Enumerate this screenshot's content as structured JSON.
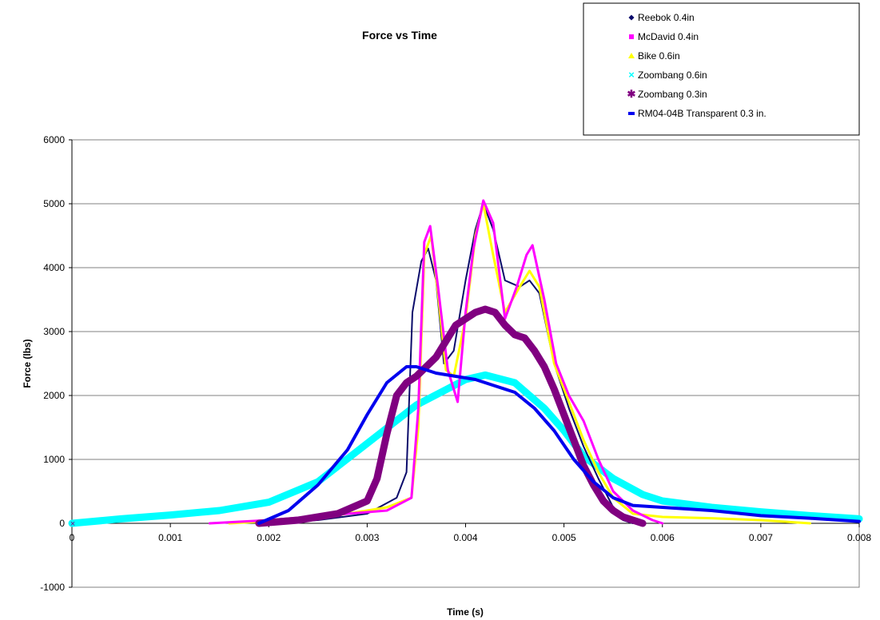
{
  "chart_data": {
    "type": "line",
    "title": "Force vs Time",
    "xlabel": "Time (s)",
    "ylabel": "Force (lbs)",
    "xlim": [
      0,
      0.008
    ],
    "ylim": [
      -1000,
      6000
    ],
    "x_ticks": [
      "0",
      "0.001",
      "0.002",
      "0.003",
      "0.004",
      "0.005",
      "0.006",
      "0.007",
      "0.008"
    ],
    "y_ticks": [
      "-1000",
      "0",
      "1000",
      "2000",
      "3000",
      "4000",
      "5000",
      "6000"
    ],
    "grid": "horizontal",
    "legend_position": "top-right",
    "series": [
      {
        "name": "Reebok 0.4in",
        "color": "#0b0b6b",
        "marker": "diamond",
        "x": [
          0.002,
          0.0025,
          0.003,
          0.0033,
          0.0034,
          0.00346,
          0.00355,
          0.00362,
          0.0037,
          0.00378,
          0.00388,
          0.004,
          0.0041,
          0.00418,
          0.00428,
          0.0044,
          0.00455,
          0.00465,
          0.00475,
          0.0049,
          0.00505,
          0.0052,
          0.00535,
          0.0055,
          0.0056,
          0.0057
        ],
        "y": [
          0,
          50,
          150,
          400,
          800,
          3300,
          4100,
          4300,
          3800,
          2500,
          2700,
          3800,
          4600,
          5000,
          4600,
          3800,
          3700,
          3800,
          3600,
          2500,
          1800,
          1200,
          700,
          250,
          50,
          0
        ]
      },
      {
        "name": "McDavid 0.4in",
        "color": "#ff00ff",
        "marker": "square",
        "x": [
          0.0014,
          0.002,
          0.0028,
          0.0032,
          0.00345,
          0.00352,
          0.00358,
          0.00364,
          0.00372,
          0.00382,
          0.00392,
          0.004,
          0.00408,
          0.00418,
          0.00428,
          0.0044,
          0.00452,
          0.00462,
          0.00468,
          0.0048,
          0.00492,
          0.00505,
          0.0052,
          0.00535,
          0.0055,
          0.0057,
          0.0059,
          0.006
        ],
        "y": [
          0,
          50,
          150,
          200,
          400,
          1800,
          4400,
          4650,
          3700,
          2400,
          1900,
          3300,
          4300,
          5050,
          4700,
          3200,
          3700,
          4200,
          4350,
          3500,
          2500,
          2000,
          1600,
          1000,
          500,
          200,
          50,
          0
        ]
      },
      {
        "name": "Bike 0.6in",
        "color": "#ffff00",
        "marker": "triangle",
        "x": [
          0.0016,
          0.0022,
          0.0028,
          0.0032,
          0.00345,
          0.00352,
          0.00358,
          0.00365,
          0.00372,
          0.0038,
          0.00388,
          0.004,
          0.0041,
          0.00418,
          0.00428,
          0.0044,
          0.00455,
          0.00465,
          0.00475,
          0.0049,
          0.00505,
          0.0052,
          0.00535,
          0.0055,
          0.0057,
          0.006,
          0.0065,
          0.007,
          0.0075
        ],
        "y": [
          0,
          50,
          150,
          250,
          400,
          1500,
          4200,
          4500,
          3600,
          2400,
          2300,
          3200,
          4500,
          5000,
          4200,
          3300,
          3700,
          3950,
          3700,
          2500,
          1900,
          1300,
          800,
          400,
          150,
          100,
          80,
          50,
          0
        ]
      },
      {
        "name": "Zoombang 0.6in",
        "color": "#00ffff",
        "marker": "x",
        "x": [
          0.0,
          0.0005,
          0.001,
          0.0015,
          0.002,
          0.0025,
          0.003,
          0.0035,
          0.004,
          0.0042,
          0.0045,
          0.0048,
          0.005,
          0.0052,
          0.0055,
          0.0058,
          0.006,
          0.0065,
          0.007,
          0.0075,
          0.008
        ],
        "y": [
          0,
          70,
          130,
          200,
          330,
          650,
          1250,
          1850,
          2250,
          2320,
          2200,
          1800,
          1450,
          1050,
          700,
          450,
          350,
          250,
          180,
          120,
          70
        ]
      },
      {
        "name": "Zoombang 0.3in",
        "color": "#800080",
        "marker": "star",
        "x": [
          0.0019,
          0.0023,
          0.0027,
          0.003,
          0.0031,
          0.0032,
          0.0033,
          0.0034,
          0.0035,
          0.0036,
          0.0037,
          0.0038,
          0.0039,
          0.004,
          0.0041,
          0.0042,
          0.0043,
          0.0044,
          0.0045,
          0.0046,
          0.0047,
          0.0048,
          0.0049,
          0.005,
          0.0051,
          0.0052,
          0.0053,
          0.0054,
          0.0055,
          0.0056,
          0.0057,
          0.0058
        ],
        "y": [
          0,
          50,
          150,
          350,
          700,
          1400,
          2000,
          2200,
          2300,
          2450,
          2600,
          2850,
          3100,
          3200,
          3300,
          3350,
          3300,
          3100,
          2950,
          2900,
          2700,
          2450,
          2100,
          1700,
          1300,
          900,
          600,
          350,
          200,
          100,
          50,
          0
        ]
      },
      {
        "name": "RM04-04B Transparent 0.3 in.",
        "color": "#0000ee",
        "marker": "dash",
        "x": [
          0.0019,
          0.0022,
          0.0025,
          0.0028,
          0.003,
          0.0032,
          0.0034,
          0.0035,
          0.0037,
          0.0039,
          0.0041,
          0.0043,
          0.0045,
          0.0047,
          0.0049,
          0.0051,
          0.0053,
          0.0055,
          0.0057,
          0.006,
          0.0065,
          0.007,
          0.0075,
          0.008
        ],
        "y": [
          0,
          200,
          600,
          1150,
          1700,
          2200,
          2450,
          2450,
          2350,
          2300,
          2250,
          2150,
          2050,
          1800,
          1450,
          1000,
          650,
          400,
          280,
          250,
          200,
          120,
          80,
          30
        ]
      }
    ]
  }
}
